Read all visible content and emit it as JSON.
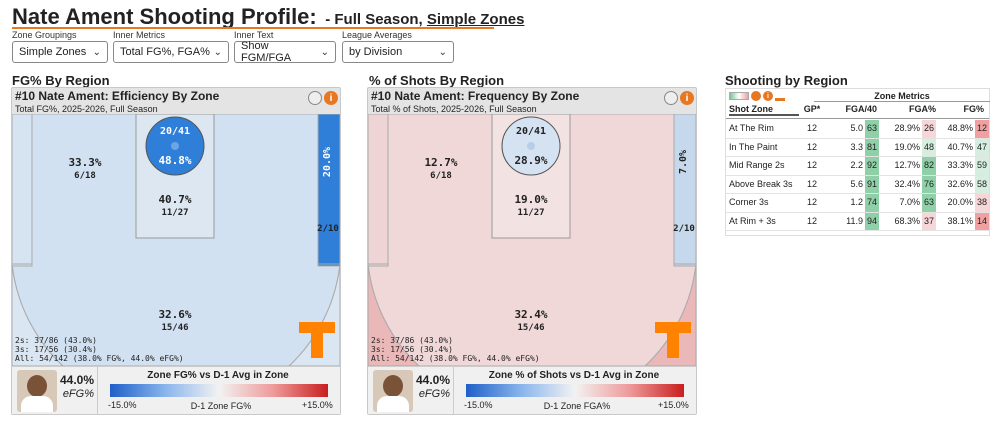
{
  "header": {
    "title": "Nate Ament Shooting Profile:",
    "subtitle": "- Full Season, ",
    "subtitle2": "Simple Zones"
  },
  "controls": [
    {
      "label": "Zone Groupings",
      "value": "Simple Zones"
    },
    {
      "label": "Inner Metrics",
      "value": "Total FG%, FGA%"
    },
    {
      "label": "Inner Text",
      "value": "Show FGM/FGA"
    },
    {
      "label": "League Averages",
      "value": "by Division"
    }
  ],
  "panel1": {
    "section_title": "FG% By Region",
    "card_title": "#10 Nate Ament: Efficiency By Zone",
    "card_sub": "Total FG%, 2025-2026, Full Season",
    "zones": {
      "rim_pct": "20/41",
      "rim_val": "48.8%",
      "paint_pct": "40.7%",
      "paint_frac": "11/27",
      "left_mid_pct": "33.3%",
      "left_mid_frac": "6/18",
      "corner_pct": "20.0%",
      "corner_frac": "2/10",
      "three_pct": "32.6%",
      "three_frac": "15/46"
    },
    "footer_lines": [
      "2s: 37/86 (43.0%)",
      "3s: 17/56 (30.4%)",
      "All: 54/142 (38.0% FG%, 44.0% eFG%)"
    ],
    "player_value": "44.0%",
    "player_metric": "eFG%",
    "legend_title": "Zone FG% vs D-1 Avg in Zone",
    "legend_min": "-15.0%",
    "legend_mid": "D-1 Zone FG%",
    "legend_max": "+15.0%"
  },
  "panel2": {
    "section_title": "% of Shots By Region",
    "card_title": "#10 Nate Ament: Frequency By Zone",
    "card_sub": "Total % of Shots, 2025-2026, Full Season",
    "zones": {
      "rim_pct": "20/41",
      "rim_val": "28.9%",
      "paint_pct": "19.0%",
      "paint_frac": "11/27",
      "left_mid_pct": "12.7%",
      "left_mid_frac": "6/18",
      "corner_pct": "7.0%",
      "corner_frac": "2/10",
      "three_pct": "32.4%",
      "three_frac": "15/46"
    },
    "footer_lines": [
      "2s: 37/86 (43.0%)",
      "3s: 17/56 (30.4%)",
      "All: 54/142 (38.0% FG%, 44.0% eFG%)"
    ],
    "player_value": "44.0%",
    "player_metric": "eFG%",
    "legend_title": "Zone % of Shots vs D-1 Avg in Zone",
    "legend_min": "-15.0%",
    "legend_mid": "D-1 Zone FGA%",
    "legend_max": "+15.0%"
  },
  "table": {
    "section_title": "Shooting by Region",
    "group_header": "Zone Metrics",
    "columns": [
      "Shot Zone",
      "GP*",
      "FGA/40",
      "FGA%",
      "FG%"
    ],
    "rows": [
      {
        "zone": "At The Rim",
        "gp": "12",
        "fga40": "5.0",
        "fga40_pct": "63",
        "fgap": "28.9%",
        "fgap_pct": "26",
        "fg": "48.8%",
        "fg_pct": "12"
      },
      {
        "zone": "In The Paint",
        "gp": "12",
        "fga40": "3.3",
        "fga40_pct": "81",
        "fgap": "19.0%",
        "fgap_pct": "48",
        "fg": "40.7%",
        "fg_pct": "47"
      },
      {
        "zone": "Mid Range 2s",
        "gp": "12",
        "fga40": "2.2",
        "fga40_pct": "92",
        "fgap": "12.7%",
        "fgap_pct": "82",
        "fg": "33.3%",
        "fg_pct": "59"
      },
      {
        "zone": "Above Break 3s",
        "gp": "12",
        "fga40": "5.6",
        "fga40_pct": "91",
        "fgap": "32.4%",
        "fgap_pct": "76",
        "fg": "32.6%",
        "fg_pct": "58"
      },
      {
        "zone": "Corner 3s",
        "gp": "12",
        "fga40": "1.2",
        "fga40_pct": "74",
        "fgap": "7.0%",
        "fgap_pct": "63",
        "fg": "20.0%",
        "fg_pct": "38"
      },
      {
        "zone": "At Rim + 3s",
        "gp": "12",
        "fga40": "11.9",
        "fga40_pct": "94",
        "fgap": "68.3%",
        "fgap_pct": "37",
        "fg": "38.1%",
        "fg_pct": "14"
      }
    ]
  },
  "colors": {
    "accent": "#e87722",
    "blue_dark": "#2f7fd8",
    "blue_light": "#cfe0f0",
    "pink_light": "#f2d2d2",
    "pink_mid": "#eab8b8",
    "green": "#7cc49a",
    "red": "#f0a0a0"
  }
}
